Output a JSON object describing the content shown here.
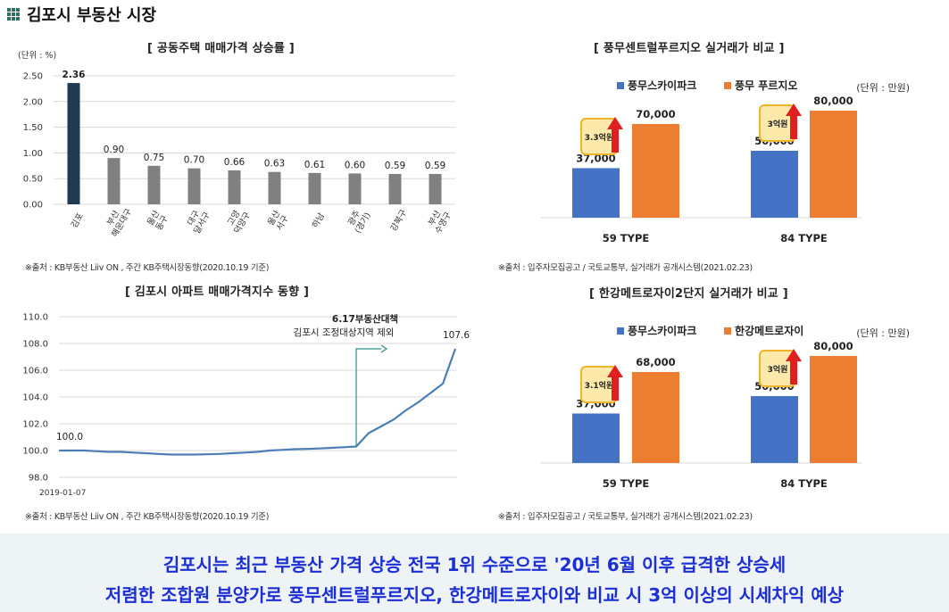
{
  "header": {
    "title": "김포시 부동산 시장"
  },
  "colors": {
    "dark_bar": "#1f3a52",
    "grey_bar": "#808080",
    "blue": "#4472c4",
    "orange": "#ed7d31",
    "line": "#4a7fb5",
    "annot": "#2a8f82",
    "badge_bg": "#fde9a9",
    "badge_border": "#f0b428",
    "arrow": "#e02020",
    "footer_text": "#1c2fd6"
  },
  "footer": {
    "line1": "김포시는 최근 부동산 가격 상승 전국 1위 수준으로 '20년 6월 이후 급격한 상승세",
    "line2": "저렴한 조합원 분양가로 풍무센트럴푸르지오, 한강메트로자이와 비교 시 3억 이상의 시세차익 예상"
  },
  "chart_data": [
    {
      "id": "price_rise",
      "type": "bar",
      "title": "[ 공동주택 매매가격 상승률 ]",
      "unit_label": "(단위 : %)",
      "categories": [
        "김포",
        "부산\n해운대구",
        "울산\n동구",
        "대구\n달서구",
        "고양\n덕양구",
        "울산\n서구",
        "하남",
        "광주\n(경기)",
        "강북구",
        "부산\n수영구"
      ],
      "values": [
        2.36,
        0.9,
        0.75,
        0.7,
        0.66,
        0.63,
        0.61,
        0.6,
        0.59,
        0.59
      ],
      "value_labels": [
        "2.36",
        "0.90",
        "0.75",
        "0.70",
        "0.66",
        "0.63",
        "0.61",
        "0.60",
        "0.59",
        "0.59"
      ],
      "highlight_index": 0,
      "ylim": [
        0,
        2.5
      ],
      "yticks": [
        "0.00",
        "0.50",
        "1.00",
        "1.50",
        "2.00",
        "2.50"
      ],
      "source": "※출처 : KB부동산 Liiv ON , 주간 KB주택시장동향(2020.10.19 기준)"
    },
    {
      "id": "pungmu",
      "type": "bar",
      "title": "[ 풍무센트럴푸르지오 실거래가 비교 ]",
      "unit_label": "(단위 : 만원)",
      "categories": [
        "59 TYPE",
        "84 TYPE"
      ],
      "series": [
        {
          "name": "풍무스카이파크",
          "values": [
            37000,
            50000
          ],
          "labels": [
            "37,000",
            "50,000"
          ]
        },
        {
          "name": "풍무 푸르지오",
          "values": [
            70000,
            80000
          ],
          "labels": [
            "70,000",
            "80,000"
          ]
        }
      ],
      "ylim": [
        0,
        100000
      ],
      "badges": [
        "3.3억원",
        "3억원"
      ],
      "source": "※출처 : 입주자모집공고 / 국토교통부, 실거래가 공개시스템(2021.02.23)"
    },
    {
      "id": "apartment_index",
      "type": "line",
      "title": "[ 김포시 아파트 매매가격지수 동향 ]",
      "yticks": [
        "98.0",
        "100.0",
        "102.0",
        "104.0",
        "106.0",
        "108.0",
        "110.0"
      ],
      "ylim": [
        98,
        110
      ],
      "x_start_label": "2019-01-07",
      "start_label": "100.0",
      "end_label": "107.6",
      "annotation_line1": "6.17부동산대책",
      "annotation_line2": "김포시 조정대상지역 제외",
      "values": [
        100.0,
        100.0,
        100.0,
        99.95,
        99.9,
        99.9,
        99.85,
        99.8,
        99.75,
        99.7,
        99.7,
        99.7,
        99.72,
        99.75,
        99.8,
        99.85,
        99.9,
        100.0,
        100.05,
        100.1,
        100.12,
        100.15,
        100.2,
        100.25,
        100.3,
        101.3,
        101.8,
        102.3,
        103.0,
        103.6,
        104.3,
        105.0,
        107.6
      ],
      "annotation_index": 24,
      "source": "※출처 : KB부동산 Liiv ON , 주간 KB주택시장동향(2020.10.19 기준)"
    },
    {
      "id": "hangang",
      "type": "bar",
      "title": "[ 한강메트로자이2단지 실거래가 비교 ]",
      "unit_label": "(단위 : 만원)",
      "categories": [
        "59 TYPE",
        "84 TYPE"
      ],
      "series": [
        {
          "name": "풍무스카이파크",
          "values": [
            37000,
            50000
          ],
          "labels": [
            "37,000",
            "50,000"
          ]
        },
        {
          "name": "한강메트로자이",
          "values": [
            68000,
            80000
          ],
          "labels": [
            "68,000",
            "80,000"
          ]
        }
      ],
      "ylim": [
        0,
        100000
      ],
      "badges": [
        "3.1억원",
        "3억원"
      ],
      "source": "※출처 : 입주자모집공고 / 국토교통부, 실거래가 공개시스템(2021.02.23)"
    }
  ]
}
